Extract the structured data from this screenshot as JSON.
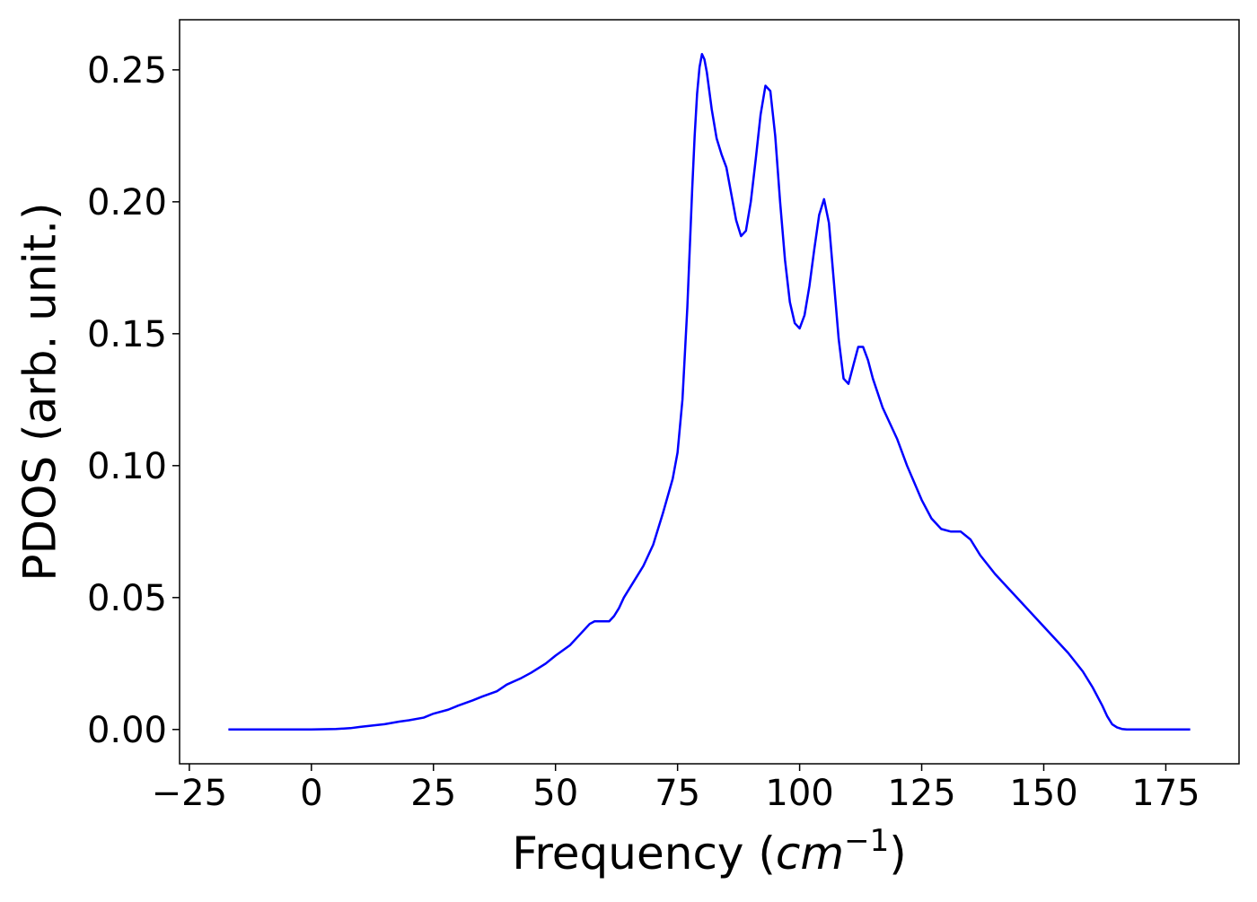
{
  "chart_data": {
    "type": "line",
    "title": "",
    "xlabel": "Frequency (cm^{-1})",
    "ylabel": "PDOS (arb. unit.)",
    "xlim": [
      -27,
      190
    ],
    "ylim": [
      -0.013,
      0.269
    ],
    "xticks": [
      -25,
      0,
      25,
      50,
      75,
      100,
      125,
      150,
      175
    ],
    "xtick_labels": [
      "−25",
      "0",
      "25",
      "50",
      "75",
      "100",
      "125",
      "150",
      "175"
    ],
    "yticks": [
      0.0,
      0.05,
      0.1,
      0.15,
      0.2,
      0.25
    ],
    "ytick_labels": [
      "0.00",
      "0.05",
      "0.10",
      "0.15",
      "0.20",
      "0.25"
    ],
    "grid": false,
    "legend": "none",
    "series": [
      {
        "color": "#0000ff",
        "x": [
          -17,
          -10,
          0,
          5,
          8,
          10,
          15,
          18,
          20,
          23,
          25,
          28,
          30,
          33,
          35,
          38,
          40,
          43,
          45,
          48,
          50,
          53,
          55,
          57,
          58,
          59,
          60,
          61,
          62,
          63,
          64,
          66,
          68,
          70,
          72,
          74,
          75,
          76,
          77,
          78,
          78.5,
          79,
          79.5,
          80,
          80.5,
          81,
          82,
          83,
          84,
          85,
          86,
          87,
          88,
          89,
          90,
          91,
          92,
          93,
          94,
          95,
          96,
          97,
          98,
          99,
          100,
          101,
          102,
          103,
          104,
          105,
          106,
          107,
          108,
          109,
          110,
          111,
          112,
          113,
          114,
          115,
          117,
          120,
          122,
          125,
          127,
          129,
          131,
          133,
          135,
          137,
          140,
          143,
          146,
          149,
          152,
          155,
          158,
          160,
          162,
          163,
          164,
          165,
          166,
          167,
          170,
          175,
          180
        ],
        "values": [
          0.0,
          0.0,
          0.0,
          0.0002,
          0.0005,
          0.001,
          0.002,
          0.003,
          0.0035,
          0.0045,
          0.006,
          0.0075,
          0.009,
          0.011,
          0.0125,
          0.0145,
          0.017,
          0.0195,
          0.0215,
          0.025,
          0.028,
          0.032,
          0.036,
          0.04,
          0.041,
          0.041,
          0.041,
          0.041,
          0.043,
          0.046,
          0.05,
          0.056,
          0.062,
          0.07,
          0.082,
          0.095,
          0.105,
          0.125,
          0.16,
          0.205,
          0.225,
          0.241,
          0.251,
          0.256,
          0.254,
          0.249,
          0.235,
          0.224,
          0.218,
          0.213,
          0.203,
          0.193,
          0.187,
          0.189,
          0.2,
          0.216,
          0.233,
          0.244,
          0.242,
          0.225,
          0.2,
          0.178,
          0.162,
          0.154,
          0.152,
          0.157,
          0.168,
          0.182,
          0.195,
          0.201,
          0.192,
          0.17,
          0.148,
          0.133,
          0.131,
          0.138,
          0.145,
          0.145,
          0.14,
          0.133,
          0.122,
          0.11,
          0.1,
          0.087,
          0.08,
          0.076,
          0.075,
          0.075,
          0.072,
          0.066,
          0.059,
          0.053,
          0.047,
          0.041,
          0.035,
          0.029,
          0.022,
          0.016,
          0.009,
          0.005,
          0.002,
          0.0008,
          0.0002,
          0.0,
          0.0,
          0.0,
          0.0
        ]
      }
    ]
  }
}
